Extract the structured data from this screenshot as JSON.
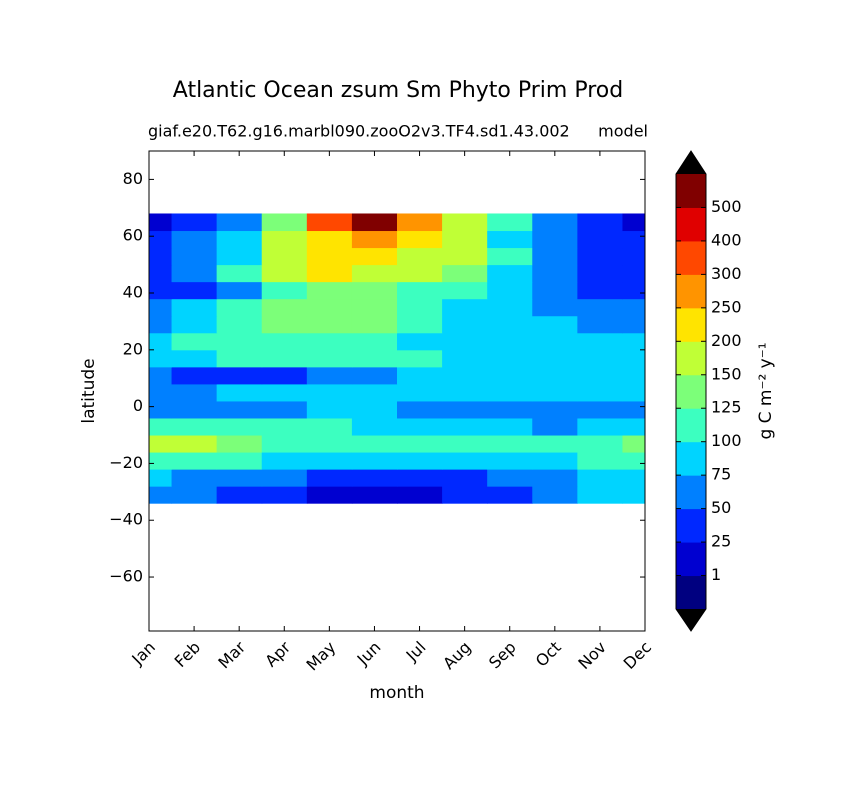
{
  "chart_data": {
    "type": "contourf",
    "title": "Atlantic Ocean zsum Sm Phyto Prim Prod",
    "subtitle": "giaf.e20.T62.g16.marbl090.zooO2v3.TF4.sd1.43.002",
    "subtitle_right": "model",
    "xlabel": "month",
    "ylabel": "latitude",
    "colorbar_label": "g C m⁻² y⁻¹",
    "categories": [
      "Jan",
      "Feb",
      "Mar",
      "Apr",
      "May",
      "Jun",
      "Jul",
      "Aug",
      "Sep",
      "Oct",
      "Nov",
      "Dec"
    ],
    "y": [
      -31,
      -25,
      -19,
      -13,
      -7,
      -1,
      5,
      11,
      17,
      23,
      29,
      35,
      41,
      47,
      53,
      59,
      65
    ],
    "ylim": [
      -79,
      90
    ],
    "yticks": [
      {
        "value": -60,
        "label": "−60"
      },
      {
        "value": -40,
        "label": "−40"
      },
      {
        "value": -20,
        "label": "−20"
      },
      0,
      20,
      40,
      60,
      80
    ],
    "levels": [
      1,
      25,
      50,
      75,
      100,
      125,
      150,
      200,
      250,
      300,
      400,
      500
    ],
    "colors": [
      "#000080",
      "#0000d0",
      "#0028ff",
      "#0080ff",
      "#00d4ff",
      "#3cffc0",
      "#7cff79",
      "#c0ff36",
      "#ffe400",
      "#ff9400",
      "#ff4800",
      "#e00000",
      "#800000"
    ],
    "under_color": "#000000",
    "over_color": "#000000",
    "z": [
      [
        60,
        50,
        40,
        30,
        20,
        20,
        20,
        25,
        40,
        60,
        75,
        90
      ],
      [
        80,
        70,
        60,
        50,
        40,
        40,
        40,
        45,
        55,
        70,
        80,
        90
      ],
      [
        110,
        105,
        100,
        90,
        85,
        80,
        80,
        85,
        90,
        95,
        100,
        110
      ],
      [
        160,
        150,
        130,
        120,
        110,
        105,
        100,
        100,
        100,
        100,
        110,
        130
      ],
      [
        110,
        120,
        110,
        100,
        100,
        95,
        90,
        85,
        80,
        70,
        75,
        90
      ],
      [
        60,
        50,
        60,
        70,
        80,
        80,
        70,
        60,
        50,
        55,
        60,
        60
      ],
      [
        60,
        70,
        75,
        80,
        85,
        85,
        80,
        80,
        80,
        85,
        90,
        85
      ],
      [
        60,
        40,
        40,
        45,
        60,
        70,
        80,
        85,
        85,
        85,
        85,
        80
      ],
      [
        90,
        95,
        100,
        105,
        105,
        100,
        100,
        95,
        90,
        85,
        85,
        85
      ],
      [
        85,
        100,
        110,
        110,
        110,
        110,
        95,
        85,
        80,
        80,
        80,
        80
      ],
      [
        70,
        90,
        110,
        140,
        140,
        140,
        120,
        90,
        85,
        80,
        70,
        65
      ],
      [
        60,
        80,
        110,
        130,
        130,
        130,
        120,
        95,
        85,
        70,
        60,
        60
      ],
      [
        30,
        40,
        70,
        110,
        130,
        140,
        120,
        100,
        80,
        50,
        40,
        30
      ],
      [
        45,
        60,
        110,
        160,
        200,
        190,
        160,
        130,
        90,
        50,
        40,
        40
      ],
      [
        40,
        55,
        90,
        160,
        210,
        210,
        180,
        150,
        100,
        55,
        40,
        35
      ],
      [
        30,
        50,
        80,
        150,
        220,
        250,
        200,
        160,
        90,
        50,
        40,
        30
      ],
      [
        10,
        40,
        60,
        130,
        300,
        500,
        280,
        180,
        110,
        50,
        30,
        10
      ]
    ]
  }
}
